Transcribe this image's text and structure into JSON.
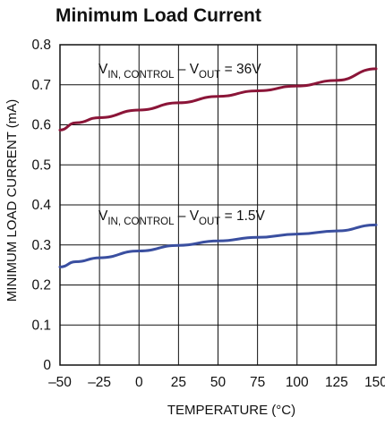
{
  "chart_data": {
    "type": "line",
    "title": "Minimum Load Current",
    "xlabel": "TEMPERATURE (°C)",
    "ylabel": "MINIMUM LOAD CURRENT (mA)",
    "xlim": [
      -50,
      150
    ],
    "ylim": [
      0,
      0.8
    ],
    "x_ticks": [
      "–50",
      "–25",
      "0",
      "25",
      "50",
      "75",
      "100",
      "125",
      "150"
    ],
    "y_ticks": [
      "0",
      "0.1",
      "0.2",
      "0.3",
      "0.4",
      "0.5",
      "0.6",
      "0.7",
      "0.8"
    ],
    "grid": true,
    "series": [
      {
        "name": "VIN, CONTROL – VOUT = 36V",
        "name_parts": {
          "v1": "V",
          "sub1": "IN, CONTROL",
          "dash": " – V",
          "sub2": "OUT",
          "tail": " = 36V"
        },
        "color": "#8b1538",
        "x": [
          -50,
          -40,
          -25,
          0,
          25,
          50,
          75,
          100,
          125,
          150
        ],
        "y": [
          0.587,
          0.605,
          0.618,
          0.637,
          0.655,
          0.671,
          0.685,
          0.697,
          0.711,
          0.74
        ]
      },
      {
        "name": "VIN, CONTROL – VOUT = 1.5V",
        "name_parts": {
          "v1": "V",
          "sub1": "IN, CONTROL",
          "dash": " – V",
          "sub2": "OUT",
          "tail": " = 1.5V"
        },
        "color": "#3a4fa0",
        "x": [
          -50,
          -40,
          -25,
          0,
          25,
          50,
          75,
          100,
          125,
          150
        ],
        "y": [
          0.245,
          0.258,
          0.268,
          0.285,
          0.299,
          0.31,
          0.319,
          0.327,
          0.335,
          0.35
        ]
      }
    ]
  }
}
